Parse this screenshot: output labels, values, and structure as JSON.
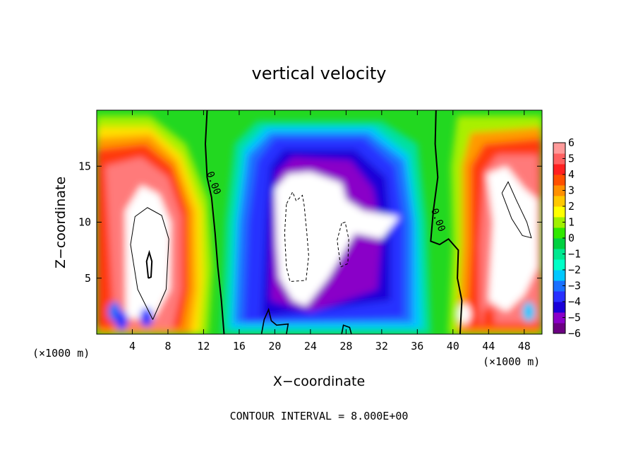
{
  "chart_data": {
    "type": "heatmap",
    "title": "vertical velocity",
    "xlabel": "X−coordinate",
    "ylabel": "Z−coordinate",
    "x_unit_left": "(×1000 m)",
    "x_unit_right": "(×1000 m)",
    "footer": "CONTOUR INTERVAL = 8.000E+00",
    "xlim": [
      0,
      50
    ],
    "ylim": [
      0,
      20
    ],
    "x_ticks": [
      4,
      8,
      12,
      16,
      20,
      24,
      28,
      32,
      36,
      40,
      44,
      48
    ],
    "x_tick_labels": [
      "4",
      "8",
      "12",
      "16",
      "20",
      "24",
      "28",
      "32",
      "36",
      "40",
      "44",
      "48"
    ],
    "y_ticks": [
      5,
      10,
      15
    ],
    "y_tick_labels": [
      "5",
      "10",
      "15"
    ],
    "colorbar": {
      "min": -6,
      "max": 6,
      "tick_values": [
        6,
        5,
        4,
        3,
        2,
        1,
        0,
        -1,
        -2,
        -3,
        -4,
        -5,
        -6
      ],
      "tick_labels": [
        "6",
        "5",
        "4",
        "3",
        "2",
        "1",
        "0",
        "−1",
        "−2",
        "−3",
        "−4",
        "−5",
        "−6"
      ],
      "colors": [
        "#6b0082",
        "#8a00c8",
        "#1a00d8",
        "#2830ff",
        "#1a70ff",
        "#00c8ff",
        "#00ffc8",
        "#00e890",
        "#00d040",
        "#30e800",
        "#a0f000",
        "#ffff00",
        "#ffc800",
        "#ff9000",
        "#ff5000",
        "#ff2020",
        "#ff6060",
        "#ff9a9a"
      ]
    },
    "contour_labels": [
      {
        "text": "0.00",
        "x": 12.8,
        "y": 13.4
      },
      {
        "text": "0.00",
        "x": 38.0,
        "y": 10.1
      }
    ],
    "grid": false
  }
}
